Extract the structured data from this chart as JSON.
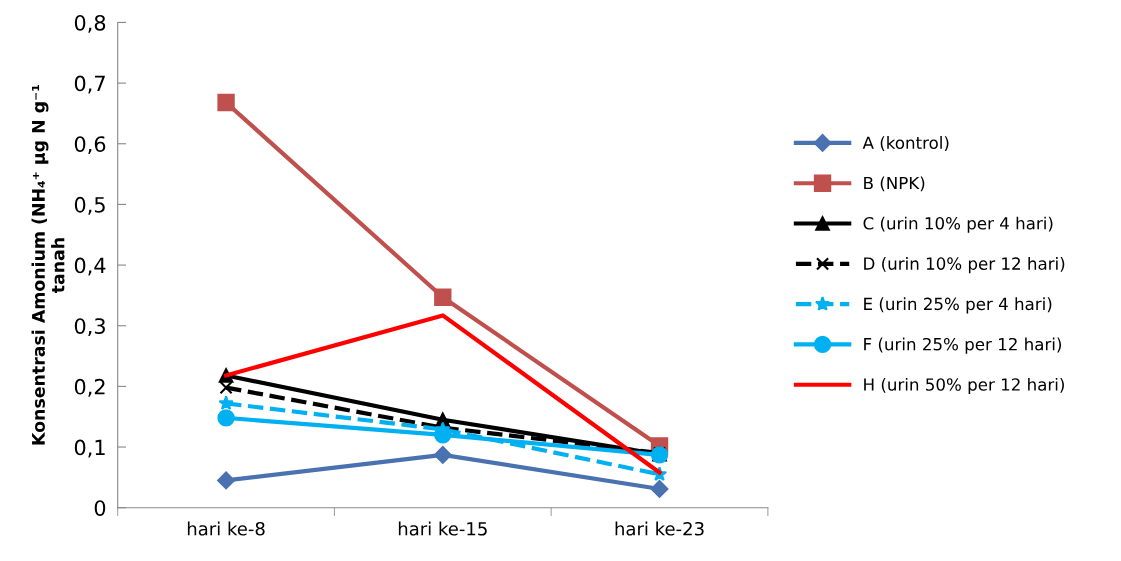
{
  "chart_data": {
    "type": "line",
    "ylabel": "Konsentrasi Amonium (NH₄⁺ μg N g⁻¹\ntanah",
    "categories": [
      "hari ke-8",
      "hari ke-15",
      "hari ke-23"
    ],
    "series": [
      {
        "name": "A (kontrol)",
        "color": "#4a72b0",
        "marker": "diamond",
        "values": [
          0.045,
          0.087,
          0.031
        ]
      },
      {
        "name": "B (NPK)",
        "color": "#c0504d",
        "marker": "square",
        "values": [
          0.668,
          0.347,
          0.102
        ]
      },
      {
        "name": "C (urin 10% per 4 hari)",
        "color": "#000000",
        "marker": "triangle",
        "values": [
          0.218,
          0.145,
          0.088
        ]
      },
      {
        "name": "D (urin 10% per 12 hari)",
        "color": "#000000",
        "marker": "cross",
        "line_style": "dashed",
        "values": [
          0.198,
          0.132,
          0.09
        ]
      },
      {
        "name": "E (urin 25% per 4 hari)",
        "color": "#00b0f0",
        "marker": "star",
        "line_style": "dashed",
        "values": [
          0.172,
          0.129,
          0.055
        ]
      },
      {
        "name": "F (urin 25% per 12 hari)",
        "color": "#00b0f0",
        "marker": "circle",
        "values": [
          0.148,
          0.12,
          0.087
        ]
      },
      {
        "name": "H (urin 50% per 12 hari)",
        "color": "#ff0000",
        "marker": "none",
        "values": [
          0.218,
          0.317,
          0.058
        ]
      }
    ],
    "ylim": [
      0,
      0.8
    ],
    "yticks": [
      {
        "value": 0,
        "label": "0"
      },
      {
        "value": 0.1,
        "label": "0,1"
      },
      {
        "value": 0.2,
        "label": "0,2"
      },
      {
        "value": 0.3,
        "label": "0,3"
      },
      {
        "value": 0.4,
        "label": "0,4"
      },
      {
        "value": 0.5,
        "label": "0,5"
      },
      {
        "value": 0.6,
        "label": "0,6"
      },
      {
        "value": 0.7,
        "label": "0,7"
      },
      {
        "value": 0.8,
        "label": "0,8"
      }
    ],
    "grid": false,
    "legend": "right",
    "line_style": "solid"
  }
}
